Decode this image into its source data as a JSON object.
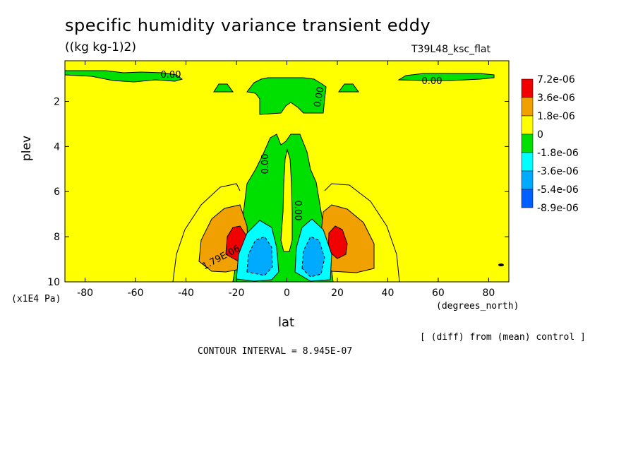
{
  "chart_data": {
    "type": "heatmap",
    "title": "specific humidity variance transient eddy",
    "units": "((kg kg-1)2)",
    "run_name": "T39L48_ksc_flat",
    "xlabel": "lat",
    "xunits": "(degrees_north)",
    "ylabel": "plev",
    "yunits": "(x1E4 Pa)",
    "xlim": [
      -88,
      88
    ],
    "ylim": [
      10,
      0.2
    ],
    "xticks": [
      -80,
      -60,
      -40,
      -20,
      0,
      20,
      40,
      60,
      80
    ],
    "yticks": [
      2,
      4,
      6,
      8,
      10
    ],
    "contour_interval_text": "CONTOUR INTERVAL = 8.945E-07",
    "note": "[ (diff) from (mean) control ]",
    "contour_labels": [
      "0.00",
      "0.00",
      "0.00",
      "0.00",
      "0.00",
      "0.00",
      "1.79E-06"
    ],
    "legend": {
      "labels": [
        "7.2e-06",
        "3.6e-06",
        "1.8e-06",
        "0",
        "-1.8e-06",
        "-3.6e-06",
        "-5.4e-06",
        "-8.9e-06"
      ],
      "colors": [
        "#f00000",
        "#f0a000",
        "#ffff00",
        "#00e000",
        "#00ffff",
        "#00aaff",
        "#0060ff"
      ]
    },
    "features": [
      {
        "name": "positive maximum SH",
        "lat": -20,
        "plev": 8.3,
        "value": "> 7.2e-06"
      },
      {
        "name": "positive maximum NH",
        "lat": 21,
        "plev": 8.2,
        "value": "> 7.2e-06"
      },
      {
        "name": "negative minimum SH",
        "lat": -8,
        "plev": 8.8,
        "value": "< -5.4e-06"
      },
      {
        "name": "negative minimum NH",
        "lat": 10,
        "plev": 8.8,
        "value": "< -5.4e-06"
      },
      {
        "name": "upper-level negative band",
        "lat": [
          -12,
          12
        ],
        "plev": [
          0.8,
          2.5
        ],
        "value": "0 to -1.8e-06"
      }
    ]
  }
}
